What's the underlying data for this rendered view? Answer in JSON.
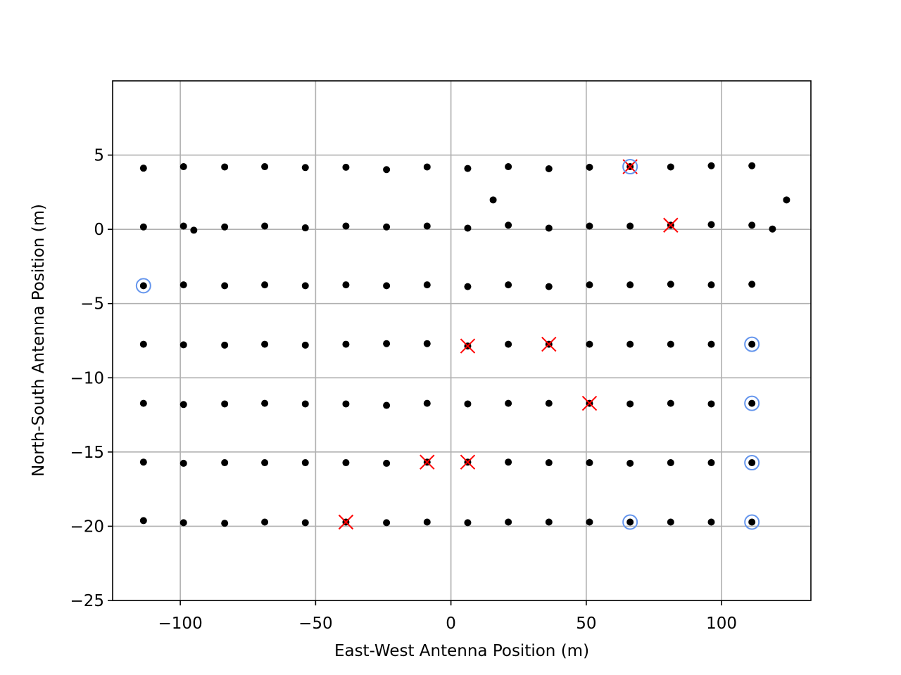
{
  "chart_data": {
    "type": "scatter",
    "title": "",
    "xlabel": "East-West Antenna Position (m)",
    "ylabel": "North-South Antenna Position (m)",
    "xlim": [
      -125,
      133
    ],
    "ylim": [
      -25,
      10
    ],
    "xticks": [
      -100,
      -50,
      0,
      50,
      100
    ],
    "yticks": [
      -25,
      -20,
      -15,
      -10,
      -5,
      0,
      5
    ],
    "xtick_labels": [
      "−100",
      "−50",
      "0",
      "50",
      "100"
    ],
    "ytick_labels": [
      "−25",
      "−20",
      "−15",
      "−10",
      "−5",
      "0",
      "5"
    ],
    "grid": true,
    "legend": null,
    "colors": {
      "antenna": "#000000",
      "flagged_x": "#ff0000",
      "highlight_circle": "#6495ed",
      "grid": "#b0b0b0"
    },
    "series": [
      {
        "marker": "dot",
        "color": "#000000",
        "points": [
          [
            -113.6,
            4.12
          ],
          [
            -98.8,
            4.22
          ],
          [
            -83.6,
            4.2
          ],
          [
            -68.8,
            4.22
          ],
          [
            -53.8,
            4.16
          ],
          [
            -38.8,
            4.18
          ],
          [
            -23.8,
            4.02
          ],
          [
            -8.8,
            4.2
          ],
          [
            6.2,
            4.1
          ],
          [
            21.2,
            4.22
          ],
          [
            36.2,
            4.08
          ],
          [
            51.2,
            4.18
          ],
          [
            66.2,
            4.22
          ],
          [
            81.2,
            4.2
          ],
          [
            96.2,
            4.28
          ],
          [
            111.2,
            4.28
          ],
          [
            15.6,
            1.98
          ],
          [
            124.0,
            1.98
          ],
          [
            -113.6,
            0.16
          ],
          [
            -98.8,
            0.22
          ],
          [
            -95.0,
            -0.06
          ],
          [
            -83.6,
            0.16
          ],
          [
            -68.8,
            0.22
          ],
          [
            -53.8,
            0.1
          ],
          [
            -38.8,
            0.22
          ],
          [
            -23.8,
            0.16
          ],
          [
            -8.8,
            0.22
          ],
          [
            6.2,
            0.08
          ],
          [
            21.2,
            0.28
          ],
          [
            36.2,
            0.08
          ],
          [
            51.2,
            0.22
          ],
          [
            66.2,
            0.22
          ],
          [
            81.2,
            0.28
          ],
          [
            96.2,
            0.32
          ],
          [
            111.2,
            0.28
          ],
          [
            118.8,
            0.02
          ],
          [
            -113.6,
            -3.8
          ],
          [
            -98.8,
            -3.74
          ],
          [
            -83.6,
            -3.8
          ],
          [
            -68.8,
            -3.74
          ],
          [
            -53.8,
            -3.8
          ],
          [
            -38.8,
            -3.74
          ],
          [
            -23.8,
            -3.8
          ],
          [
            -8.8,
            -3.74
          ],
          [
            6.2,
            -3.86
          ],
          [
            21.2,
            -3.74
          ],
          [
            36.2,
            -3.86
          ],
          [
            51.2,
            -3.74
          ],
          [
            66.2,
            -3.74
          ],
          [
            81.2,
            -3.7
          ],
          [
            96.2,
            -3.74
          ],
          [
            111.2,
            -3.7
          ],
          [
            -113.6,
            -7.74
          ],
          [
            -98.8,
            -7.78
          ],
          [
            -83.6,
            -7.8
          ],
          [
            -68.8,
            -7.74
          ],
          [
            -53.8,
            -7.8
          ],
          [
            -38.8,
            -7.74
          ],
          [
            -23.8,
            -7.7
          ],
          [
            -8.8,
            -7.7
          ],
          [
            6.2,
            -7.86
          ],
          [
            21.2,
            -7.74
          ],
          [
            36.2,
            -7.74
          ],
          [
            51.2,
            -7.74
          ],
          [
            66.2,
            -7.74
          ],
          [
            81.2,
            -7.74
          ],
          [
            96.2,
            -7.74
          ],
          [
            111.2,
            -7.74
          ],
          [
            -113.6,
            -11.72
          ],
          [
            -98.8,
            -11.8
          ],
          [
            -83.6,
            -11.76
          ],
          [
            -68.8,
            -11.72
          ],
          [
            -53.8,
            -11.76
          ],
          [
            -38.8,
            -11.76
          ],
          [
            -23.8,
            -11.86
          ],
          [
            -8.8,
            -11.72
          ],
          [
            6.2,
            -11.76
          ],
          [
            21.2,
            -11.72
          ],
          [
            36.2,
            -11.72
          ],
          [
            51.2,
            -11.72
          ],
          [
            66.2,
            -11.76
          ],
          [
            81.2,
            -11.72
          ],
          [
            96.2,
            -11.76
          ],
          [
            111.2,
            -11.72
          ],
          [
            -113.6,
            -15.68
          ],
          [
            -98.8,
            -15.76
          ],
          [
            -83.6,
            -15.72
          ],
          [
            -68.8,
            -15.72
          ],
          [
            -53.8,
            -15.72
          ],
          [
            -38.8,
            -15.72
          ],
          [
            -23.8,
            -15.76
          ],
          [
            -8.8,
            -15.68
          ],
          [
            6.2,
            -15.68
          ],
          [
            21.2,
            -15.68
          ],
          [
            36.2,
            -15.72
          ],
          [
            51.2,
            -15.72
          ],
          [
            66.2,
            -15.76
          ],
          [
            81.2,
            -15.72
          ],
          [
            96.2,
            -15.72
          ],
          [
            111.2,
            -15.72
          ],
          [
            -113.6,
            -19.62
          ],
          [
            -98.8,
            -19.76
          ],
          [
            -83.6,
            -19.8
          ],
          [
            -68.8,
            -19.72
          ],
          [
            -53.8,
            -19.76
          ],
          [
            -38.8,
            -19.72
          ],
          [
            -23.8,
            -19.76
          ],
          [
            -8.8,
            -19.72
          ],
          [
            6.2,
            -19.76
          ],
          [
            21.2,
            -19.72
          ],
          [
            36.2,
            -19.72
          ],
          [
            51.2,
            -19.72
          ],
          [
            66.2,
            -19.72
          ],
          [
            81.2,
            -19.72
          ],
          [
            96.2,
            -19.72
          ],
          [
            111.2,
            -19.72
          ]
        ]
      },
      {
        "marker": "x",
        "color": "#ff0000",
        "points": [
          [
            66.2,
            4.22
          ],
          [
            81.2,
            0.28
          ],
          [
            6.2,
            -7.86
          ],
          [
            36.2,
            -7.74
          ],
          [
            51.2,
            -11.72
          ],
          [
            -8.8,
            -15.68
          ],
          [
            6.2,
            -15.68
          ],
          [
            -38.8,
            -19.72
          ]
        ]
      },
      {
        "marker": "circle",
        "color": "#6495ed",
        "points": [
          [
            66.2,
            4.22
          ],
          [
            -113.6,
            -3.8
          ],
          [
            111.2,
            -7.74
          ],
          [
            111.2,
            -11.72
          ],
          [
            111.2,
            -15.72
          ],
          [
            66.2,
            -19.72
          ],
          [
            111.2,
            -19.72
          ]
        ]
      }
    ]
  }
}
